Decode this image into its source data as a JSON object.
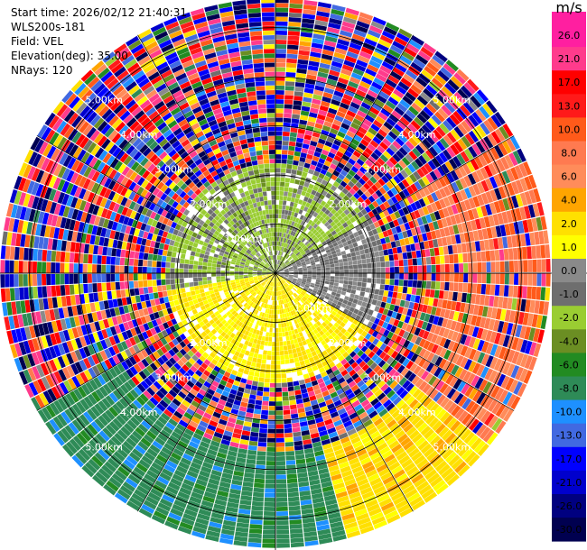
{
  "header": {
    "start_time": "Start time: 2026/02/12 21:40:31",
    "instrument": "WLS200s-181",
    "field": "Field: VEL",
    "elevation": "Elevation(deg): 35.00",
    "nrays": "NRays: 120"
  },
  "colorbar": {
    "unit": "m/s",
    "ticks": [
      "26.0",
      "21.0",
      "17.0",
      "13.0",
      "10.0",
      "8.0",
      "6.0",
      "4.0",
      "2.0",
      "1.0",
      "0.0",
      "-1.0",
      "-2.0",
      "-4.0",
      "-6.0",
      "-8.0",
      "-10.0",
      "-13.0",
      "-17.0",
      "-21.0",
      "-26.0",
      "-30.0"
    ],
    "colors": [
      "#ff1fa0",
      "#ff3b8c",
      "#ff0000",
      "#ff1a1a",
      "#ff5a1a",
      "#ff7a50",
      "#ff8c5a",
      "#ffa500",
      "#ffe000",
      "#ffff00",
      "#8a8a8a",
      "#6e6e6e",
      "#9acd32",
      "#6b8e23",
      "#228b22",
      "#2e8b57",
      "#1e90ff",
      "#4169e1",
      "#0000ff",
      "#0000cd",
      "#000080",
      "#000050"
    ]
  },
  "chart_data": {
    "type": "heatmap",
    "subtype": "PPI radar scan (polar)",
    "field": "VEL",
    "units": "m/s",
    "elevation_deg": 35.0,
    "nrays": 120,
    "range_rings_km": [
      1.0,
      2.0,
      3.0,
      4.0,
      5.0
    ],
    "range_ring_labels": [
      "1.00km",
      "2.00km",
      "3.00km",
      "4.00km",
      "5.00km"
    ],
    "max_range_km": 5.6,
    "colorbar_range": [
      -30.0,
      26.0
    ],
    "grid": true,
    "summary": {
      "inner_region_km": [
        0,
        2.2
      ],
      "inner_south_west_velocity": 2.0,
      "inner_north_velocity": -1.5,
      "inner_east_velocity": 0.0,
      "outer_south_velocity": -7.0,
      "outer_south_east_velocity": 3.0,
      "outer_east_velocity": 9.0,
      "far_field": "noisy / mixed values across full scale"
    }
  }
}
